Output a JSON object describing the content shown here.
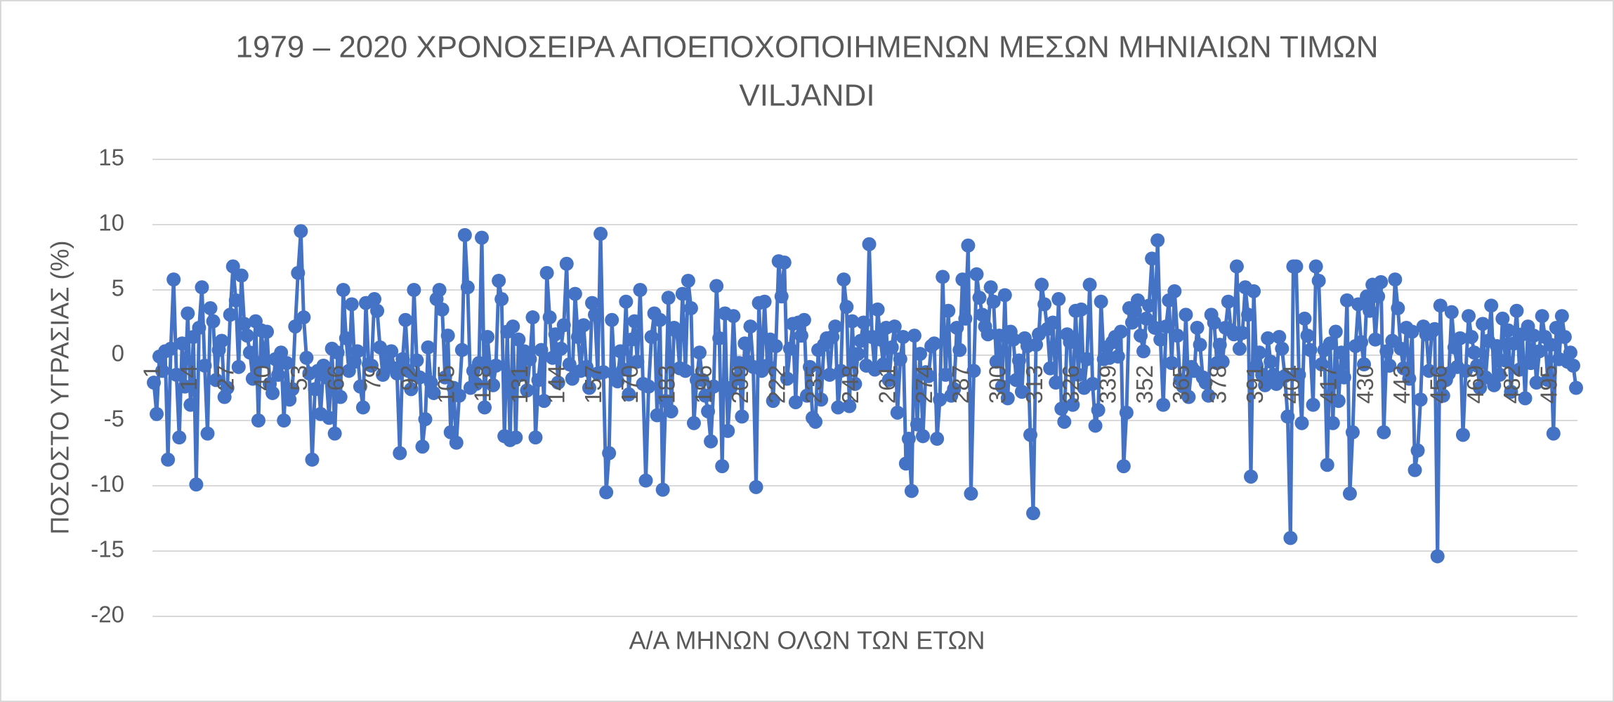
{
  "chart_data": {
    "type": "line",
    "title": "1979 – 2020 ΧΡΟΝΟΣΕΙΡΑ ΑΠΟΕΠΟΧΟΠΟΙΗΜΕΝΩΝ ΜΕΣΩΝ ΜΗΝΙΑΙΩΝ ΤΙΜΩΝ",
    "subtitle": "VILJANDI",
    "y_label": "ΠΟΣΟΣΤΟ ΥΓΡΑΣΙΑΣ (%)",
    "x_label": "Α/Α ΜΗΝΩΝ ΟΛΩΝ ΤΩΝ ΕΤΩΝ",
    "ylim": [
      -20,
      15
    ],
    "yticks": [
      -20,
      -15,
      -10,
      -5,
      0,
      5,
      10,
      15
    ],
    "grid": true,
    "categories": [
      1,
      null,
      null,
      null,
      null,
      null,
      null,
      null,
      null,
      null,
      null,
      null,
      null,
      14,
      null,
      null,
      null,
      null,
      null,
      null,
      null,
      null,
      null,
      null,
      null,
      null,
      27,
      null,
      null,
      null,
      null,
      null,
      null,
      null,
      null,
      null,
      null,
      null,
      null,
      40,
      null,
      null,
      null,
      null,
      null,
      null,
      null,
      null,
      null,
      null,
      null,
      null,
      53,
      null,
      null,
      null,
      null,
      null,
      null,
      null,
      null,
      null,
      null,
      null,
      null,
      66,
      null,
      null,
      null,
      null,
      null,
      null,
      null,
      null,
      null,
      null,
      null,
      null,
      79,
      null,
      null,
      null,
      null,
      null,
      null,
      null,
      null,
      null,
      null,
      null,
      null,
      92,
      null,
      null,
      null,
      null,
      null,
      null,
      null,
      null,
      null,
      null,
      null,
      null,
      105,
      null,
      null,
      null,
      null,
      null,
      null,
      null,
      null,
      null,
      null,
      null,
      null,
      118,
      null,
      null,
      null,
      null,
      null,
      null,
      null,
      null,
      null,
      null,
      null,
      null,
      131,
      null,
      null,
      null,
      null,
      null,
      null,
      null,
      null,
      null,
      null,
      null,
      null,
      144,
      null,
      null,
      null,
      null,
      null,
      null,
      null,
      null,
      null,
      null,
      null,
      null,
      157,
      null,
      null,
      null,
      null,
      null,
      null,
      null,
      null,
      null,
      null,
      null,
      null,
      170,
      null,
      null,
      null,
      null,
      null,
      null,
      null,
      null,
      null,
      null,
      null,
      null,
      183,
      null,
      null,
      null,
      null,
      null,
      null,
      null,
      null,
      null,
      null,
      null,
      null,
      196,
      null,
      null,
      null,
      null,
      null,
      null,
      null,
      null,
      null,
      null,
      null,
      null,
      209,
      null,
      null,
      null,
      null,
      null,
      null,
      null,
      null,
      null,
      null,
      null,
      null,
      222,
      null,
      null,
      null,
      null,
      null,
      null,
      null,
      null,
      null,
      null,
      null,
      null,
      235,
      null,
      null,
      null,
      null,
      null,
      null,
      null,
      null,
      null,
      null,
      null,
      null,
      248,
      null,
      null,
      null,
      null,
      null,
      null,
      null,
      null,
      null,
      null,
      null,
      null,
      261,
      null,
      null,
      null,
      null,
      null,
      null,
      null,
      null,
      null,
      null,
      null,
      null,
      274,
      null,
      null,
      null,
      null,
      null,
      null,
      null,
      null,
      null,
      null,
      null,
      null,
      287,
      null,
      null,
      null,
      null,
      null,
      null,
      null,
      null,
      null,
      null,
      null,
      null,
      300,
      null,
      null,
      null,
      null,
      null,
      null,
      null,
      null,
      null,
      null,
      null,
      null,
      313,
      null,
      null,
      null,
      null,
      null,
      null,
      null,
      null,
      null,
      null,
      null,
      null,
      326,
      null,
      null,
      null,
      null,
      null,
      null,
      null,
      null,
      null,
      null,
      null,
      null,
      339,
      null,
      null,
      null,
      null,
      null,
      null,
      null,
      null,
      null,
      null,
      null,
      null,
      352,
      null,
      null,
      null,
      null,
      null,
      null,
      null,
      null,
      null,
      null,
      null,
      null,
      365,
      null,
      null,
      null,
      null,
      null,
      null,
      null,
      null,
      null,
      null,
      null,
      null,
      378,
      null,
      null,
      null,
      null,
      null,
      null,
      null,
      null,
      null,
      null,
      null,
      null,
      391,
      null,
      null,
      null,
      null,
      null,
      null,
      null,
      null,
      null,
      null,
      null,
      null,
      404,
      null,
      null,
      null,
      null,
      null,
      null,
      null,
      null,
      null,
      null,
      null,
      null,
      417,
      null,
      null,
      null,
      null,
      null,
      null,
      null,
      null,
      null,
      null,
      null,
      null,
      430,
      null,
      null,
      null,
      null,
      null,
      null,
      null,
      null,
      null,
      null,
      null,
      null,
      443,
      null,
      null,
      null,
      null,
      null,
      null,
      null,
      null,
      null,
      null,
      null,
      null,
      456,
      null,
      null,
      null,
      null,
      null,
      null,
      null,
      null,
      null,
      null,
      null,
      null,
      469,
      null,
      null,
      null,
      null,
      null,
      null,
      null,
      null,
      null,
      null,
      null,
      null,
      482,
      null,
      null,
      null,
      null,
      null,
      null,
      null,
      null,
      null,
      null,
      null,
      null,
      495,
      null,
      null,
      null,
      null,
      null,
      null,
      null,
      null,
      null
    ],
    "series": [
      {
        "name": "VILJANDI",
        "color": "#4472c4",
        "values": [
          -2.1,
          -4.5,
          -0.1,
          -1.2,
          0.3,
          -8,
          0.5,
          5.8,
          -1.5,
          -6.3,
          0.9,
          -2.4,
          3.2,
          -3.8,
          1.4,
          -9.9,
          2.1,
          5.2,
          -0.8,
          -6,
          3.6,
          2.6,
          -1.9,
          0.4,
          1.1,
          -3.2,
          -2.5,
          3.1,
          6.8,
          4.2,
          -0.9,
          6.1,
          2.4,
          1.5,
          0.2,
          -1.8,
          2.6,
          -5,
          1.9,
          -0.4,
          1.8,
          -2.2,
          -2.9,
          -0.3,
          -1.5,
          0.2,
          -5,
          -0.6,
          -3.4,
          -2.6,
          2.2,
          6.3,
          9.5,
          2.9,
          -0.2,
          -1.4,
          -8,
          -2.6,
          -1.2,
          -4.5,
          -0.8,
          -1.7,
          -4.8,
          0.5,
          -6,
          0.2,
          -3.2,
          5,
          1.3,
          -1.2,
          3.9,
          -0.5,
          0.3,
          -2.4,
          -4,
          4,
          -0.7,
          -0.8,
          4.3,
          3.4,
          0.6,
          -1.5,
          0.2,
          -0.7,
          0.3,
          -1,
          -1.4,
          -7.5,
          -0.3,
          2.7,
          -1.2,
          -2.6,
          5,
          -0.4,
          -1.7,
          -7,
          -4.9,
          0.6,
          -2.1,
          -2.9,
          4.3,
          5,
          3.5,
          -1.7,
          1.5,
          -5.9,
          -2.5,
          -6.7,
          -3.1,
          0.4,
          9.2,
          5.2,
          -2.5,
          -1.2,
          -2.2,
          -0.6,
          9,
          -4,
          1.4,
          -1.1,
          -2.3,
          -0.8,
          5.7,
          4.3,
          -6.2,
          1.8,
          -6.5,
          2.2,
          -6.3,
          1.2,
          -1.5,
          0.3,
          -2.7,
          -0.3,
          2.9,
          -6.3,
          -1.9,
          0.4,
          -3.5,
          6.3,
          2.9,
          -0.2,
          1.6,
          -2.1,
          0.5,
          2.3,
          7,
          -0.7,
          -1.8,
          4.7,
          1.4,
          -1.2,
          2.3,
          -0.9,
          -2.5,
          4,
          3.1,
          -1.4,
          9.3,
          -1.3,
          -10.5,
          -7.5,
          2.7,
          -1.5,
          -2,
          0.3,
          -1.1,
          4.1,
          -3,
          1.2,
          2.6,
          -0.5,
          5,
          -2.2,
          -9.6,
          -2.4,
          1.4,
          3.2,
          -4.6,
          2.7,
          -10.3,
          -3.5,
          4.4,
          -4.3,
          2.1,
          1.8,
          -1,
          4.7,
          -1.2,
          5.7,
          3.6,
          -5.2,
          -1.9,
          0.2,
          -1.9,
          -3.1,
          -4.3,
          -6.6,
          -2.4,
          5.3,
          1.3,
          -8.5,
          3.2,
          -5.8,
          -2.5,
          3,
          -1.8,
          -0.6,
          -4.7,
          0.9,
          -0.5,
          2.2,
          -0.9,
          -10.1,
          4,
          -1.2,
          4.1,
          -0.8,
          1.2,
          -3.5,
          0.7,
          7.2,
          4.5,
          7.1,
          -1.8,
          0.5,
          2.4,
          -3.6,
          2.5,
          1.5,
          2.7,
          -3.1,
          -0.9,
          -4.8,
          -5.1,
          0.4,
          -3.4,
          0.8,
          1.3,
          -1.5,
          1.4,
          2.2,
          -4,
          -1.2,
          5.8,
          3.7,
          -3.9,
          2.6,
          -2.2,
          0.1,
          1.1,
          2.5,
          -0.8,
          8.5,
          1.4,
          -1.1,
          3.5,
          1.2,
          -0.7,
          2.1,
          -1.9,
          0.6,
          2.2,
          -4.4,
          -0.3,
          1.4,
          -8.3,
          -6.4,
          -10.4,
          1.5,
          -5.3,
          0.1,
          -6.2,
          -1.3,
          -1.6,
          0.7,
          0.9,
          -6.4,
          -3.4,
          6,
          -1.5,
          3.4,
          -3.1,
          -2.6,
          2.1,
          0.4,
          5.8,
          2.8,
          8.4,
          -10.6,
          -1.2,
          6.2,
          4.4,
          3.1,
          2.2,
          1.6,
          5.2,
          4.1,
          -0.5,
          1.5,
          -2.4,
          4.6,
          -3.3,
          1.8,
          1.2,
          -1.9,
          -0.4,
          -2.8,
          1.3,
          0.7,
          -6.1,
          -12.1,
          0.8,
          1.6,
          5.4,
          3.9,
          2,
          -1,
          2.5,
          -2.1,
          4.3,
          -4.1,
          -5.1,
          1.6,
          1,
          -3.8,
          3.4,
          -1.5,
          3.5,
          -2.5,
          -0.3,
          5.4,
          -2.2,
          -5.4,
          -4.2,
          4.1,
          -0.3,
          0.6,
          -0.2,
          1,
          1.4,
          -0.1,
          1.8,
          -8.5,
          -4.4,
          3.6,
          2.5,
          3.4,
          4.2,
          1.5,
          0.3,
          2.8,
          3.8,
          7.4,
          2.1,
          8.8,
          1.2,
          -3.8,
          2.2,
          4.2,
          -0.6,
          4.9,
          1.5,
          -1.9,
          -2.4,
          3.1,
          -3.2,
          -0.9,
          -1.2,
          2.1,
          0.8,
          -1.7,
          -2.1,
          -3.1,
          3.1,
          2.5,
          -0.6,
          0.8,
          -0.5,
          2.1,
          4.1,
          1.9,
          1.6,
          6.8,
          0.5,
          1.7,
          5.2,
          3.1,
          -9.3,
          4.9,
          -0.8,
          0.2,
          -1.5,
          -2.3,
          1.3,
          -0.5,
          -1.5,
          -2.2,
          1.4,
          0.5,
          -1.6,
          -4.7,
          -14,
          6.8,
          6.8,
          -1.5,
          -5.2,
          2.8,
          1.5,
          0.4,
          -3.8,
          6.8,
          5.7,
          -0.7,
          0.4,
          -8.4,
          0.9,
          -5.2,
          1.8,
          -3.5,
          0.2,
          -1.7,
          4.2,
          -10.6,
          -5.9,
          0.7,
          3.9,
          1,
          -0.7,
          4.5,
          3.4,
          5.4,
          1.2,
          4.5,
          5.6,
          -5.9,
          0.3,
          -0.8,
          1.1,
          5.8,
          3.6,
          0.5,
          -1,
          2.1,
          -1.8,
          1.8,
          -8.8,
          -7.3,
          -3.4,
          2.2,
          1.6,
          -1.2,
          1.8,
          2,
          -15.4,
          3.8,
          -3.1,
          -1.9,
          -1.4,
          3.3,
          0.6,
          -0.9,
          1.3,
          -6.1,
          -1.2,
          3,
          1.4,
          0.2,
          -0.8,
          -2.5,
          2.4,
          -1.7,
          1.1,
          3.8,
          -2.3,
          0.7,
          -1.5,
          2.8,
          -0.4,
          1.9,
          -2.8,
          0.9,
          3.4,
          -1.1,
          1.6,
          -3.3,
          2.2,
          -0.6,
          1.5,
          -2.1,
          0.3,
          3,
          1.4,
          -1.9,
          0.8,
          -6,
          2.1,
          -0.3,
          3,
          1.4,
          -0.5,
          0.2,
          -0.8,
          -2.5
        ]
      }
    ]
  }
}
